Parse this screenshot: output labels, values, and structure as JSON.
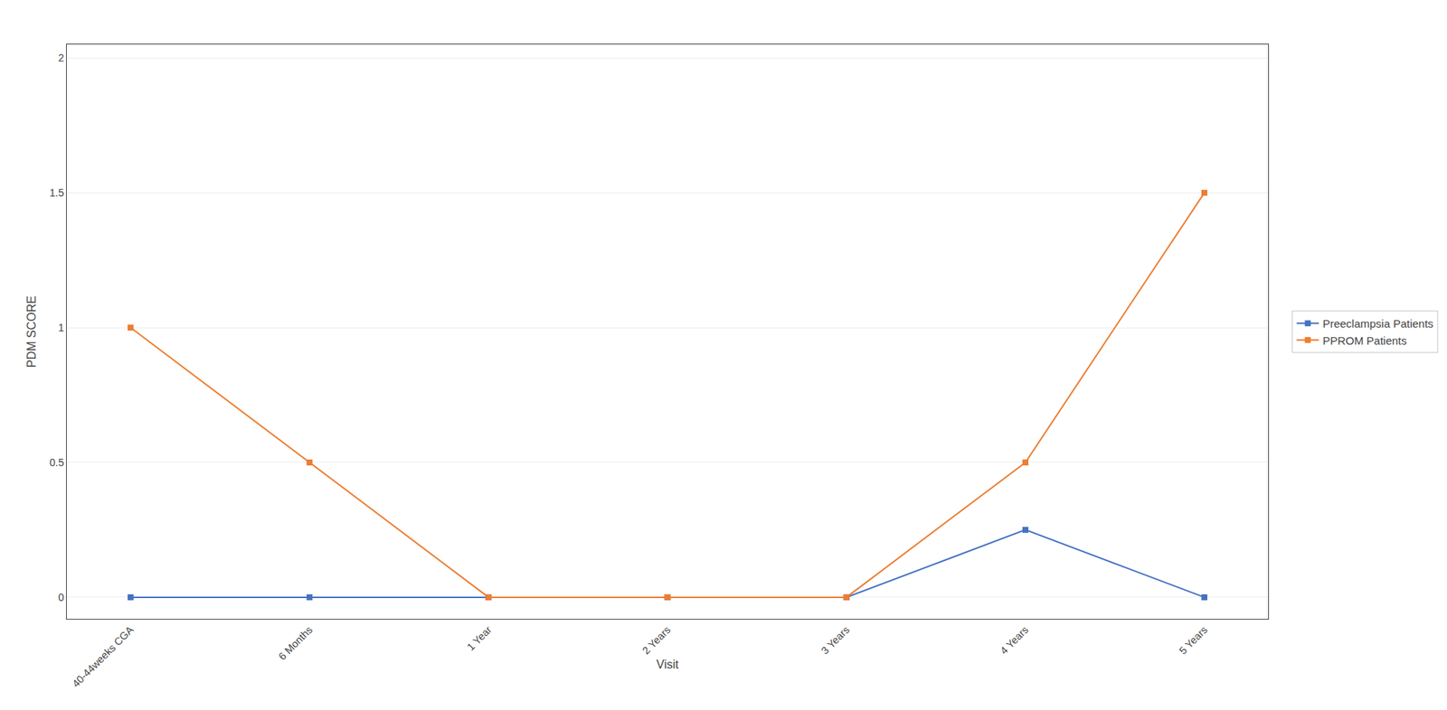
{
  "chart_data": {
    "type": "line",
    "categories": [
      "40-44weeks CGA",
      "6 Months",
      "1 Year",
      "2 Years",
      "3 Years",
      "4 Years",
      "5 Years"
    ],
    "series": [
      {
        "name": "Preeclampsia Patients",
        "color": "#4472C4",
        "values": [
          0.0,
          0.0,
          0.0,
          0.0,
          0.0,
          0.25,
          0.0
        ]
      },
      {
        "name": "PPROM Patients",
        "color": "#ED7D31",
        "values": [
          1.0,
          0.5,
          0.0,
          0.0,
          0.0,
          0.5,
          1.5
        ]
      }
    ],
    "xlabel": "Visit",
    "ylabel": "PDM SCORE",
    "ylim": [
      -0.08,
      2.05
    ],
    "yticks": [
      0,
      0.5,
      1,
      1.5,
      2
    ],
    "grid": true,
    "legend": "right",
    "marker": "square"
  }
}
